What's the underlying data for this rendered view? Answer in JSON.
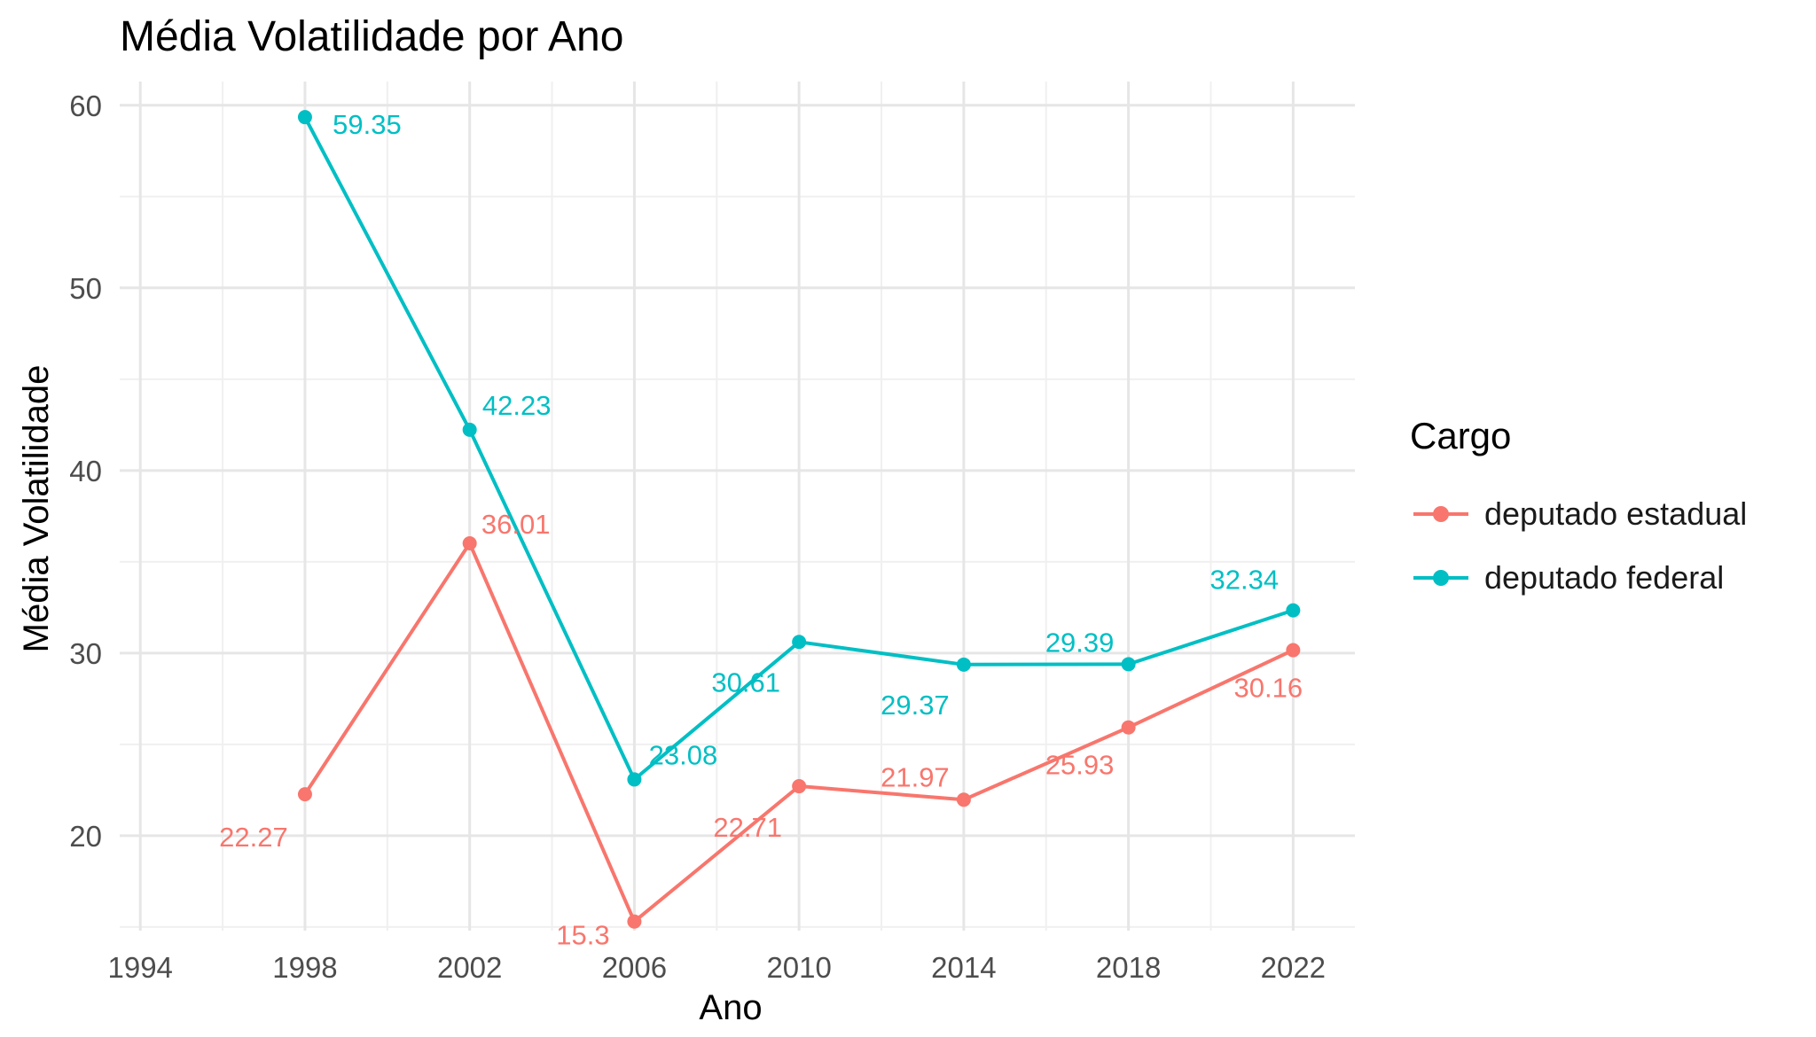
{
  "chart_data": {
    "type": "line",
    "title": "Média Volatilidade por Ano",
    "xlabel": "Ano",
    "ylabel": "Média Volatilidade",
    "x_ticks": [
      1994,
      1998,
      2002,
      2006,
      2010,
      2014,
      2018,
      2022
    ],
    "x_tick_labels": [
      "1994",
      "1998",
      "2002",
      "2006",
      "2010",
      "2014",
      "2018",
      "2022"
    ],
    "y_ticks": [
      20,
      30,
      40,
      50,
      60
    ],
    "y_tick_labels": [
      "20",
      "30",
      "40",
      "50",
      "60"
    ],
    "xlim": [
      1993.5,
      2023.5
    ],
    "ylim": [
      14.8,
      61.3
    ],
    "grid": true,
    "legend": {
      "title": "Cargo",
      "placement": "right"
    },
    "series": [
      {
        "name": "deputado estadual",
        "color": "#F8766D",
        "x": [
          1998,
          2002,
          2006,
          2010,
          2014,
          2018,
          2022
        ],
        "values": [
          22.27,
          36.01,
          15.3,
          22.71,
          21.97,
          25.93,
          30.16
        ],
        "labels": [
          "22.27",
          "36.01",
          "15.3",
          "22.71",
          "21.97",
          "25.93",
          "30.16"
        ]
      },
      {
        "name": "deputado federal",
        "color": "#00BFC4",
        "x": [
          1998,
          2002,
          2006,
          2010,
          2014,
          2018,
          2022
        ],
        "values": [
          59.35,
          42.23,
          23.08,
          30.61,
          29.37,
          29.39,
          32.34
        ],
        "labels": [
          "59.35",
          "42.23",
          "23.08",
          "30.61",
          "29.37",
          "29.39",
          "32.34"
        ]
      }
    ]
  }
}
